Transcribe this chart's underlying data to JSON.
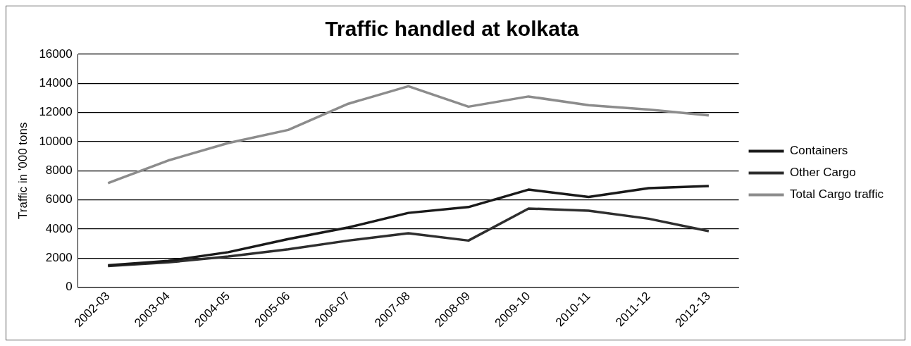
{
  "chart_data": {
    "type": "line",
    "title": "Traffic handled at kolkata",
    "ylabel": "Traffic in '000 tons",
    "categories": [
      "2002-03",
      "2003-04",
      "2004-05",
      "2005-06",
      "2006-07",
      "2007-08",
      "2008-09",
      "2009-10",
      "2010-11",
      "2011-12",
      "2012-13"
    ],
    "series": [
      {
        "name": "Containers",
        "color": "#1a1a1a",
        "values": [
          1500,
          1800,
          2400,
          3300,
          4100,
          5100,
          5500,
          6700,
          6200,
          6800,
          6950
        ]
      },
      {
        "name": "Other Cargo",
        "color": "#2e2e2e",
        "values": [
          1450,
          1700,
          2100,
          2600,
          3200,
          3700,
          3200,
          5400,
          5250,
          4700,
          3850
        ]
      },
      {
        "name": "Total Cargo traffic",
        "color": "#8c8c8c",
        "values": [
          7150,
          8700,
          9900,
          10800,
          12600,
          13800,
          12400,
          13100,
          12500,
          12200,
          11800
        ]
      }
    ],
    "ylim": [
      0,
      16000
    ],
    "yticks": [
      0,
      2000,
      4000,
      6000,
      8000,
      10000,
      12000,
      14000,
      16000
    ],
    "grid": "y",
    "legend": "right",
    "marker": "none",
    "line_style": "solid"
  }
}
